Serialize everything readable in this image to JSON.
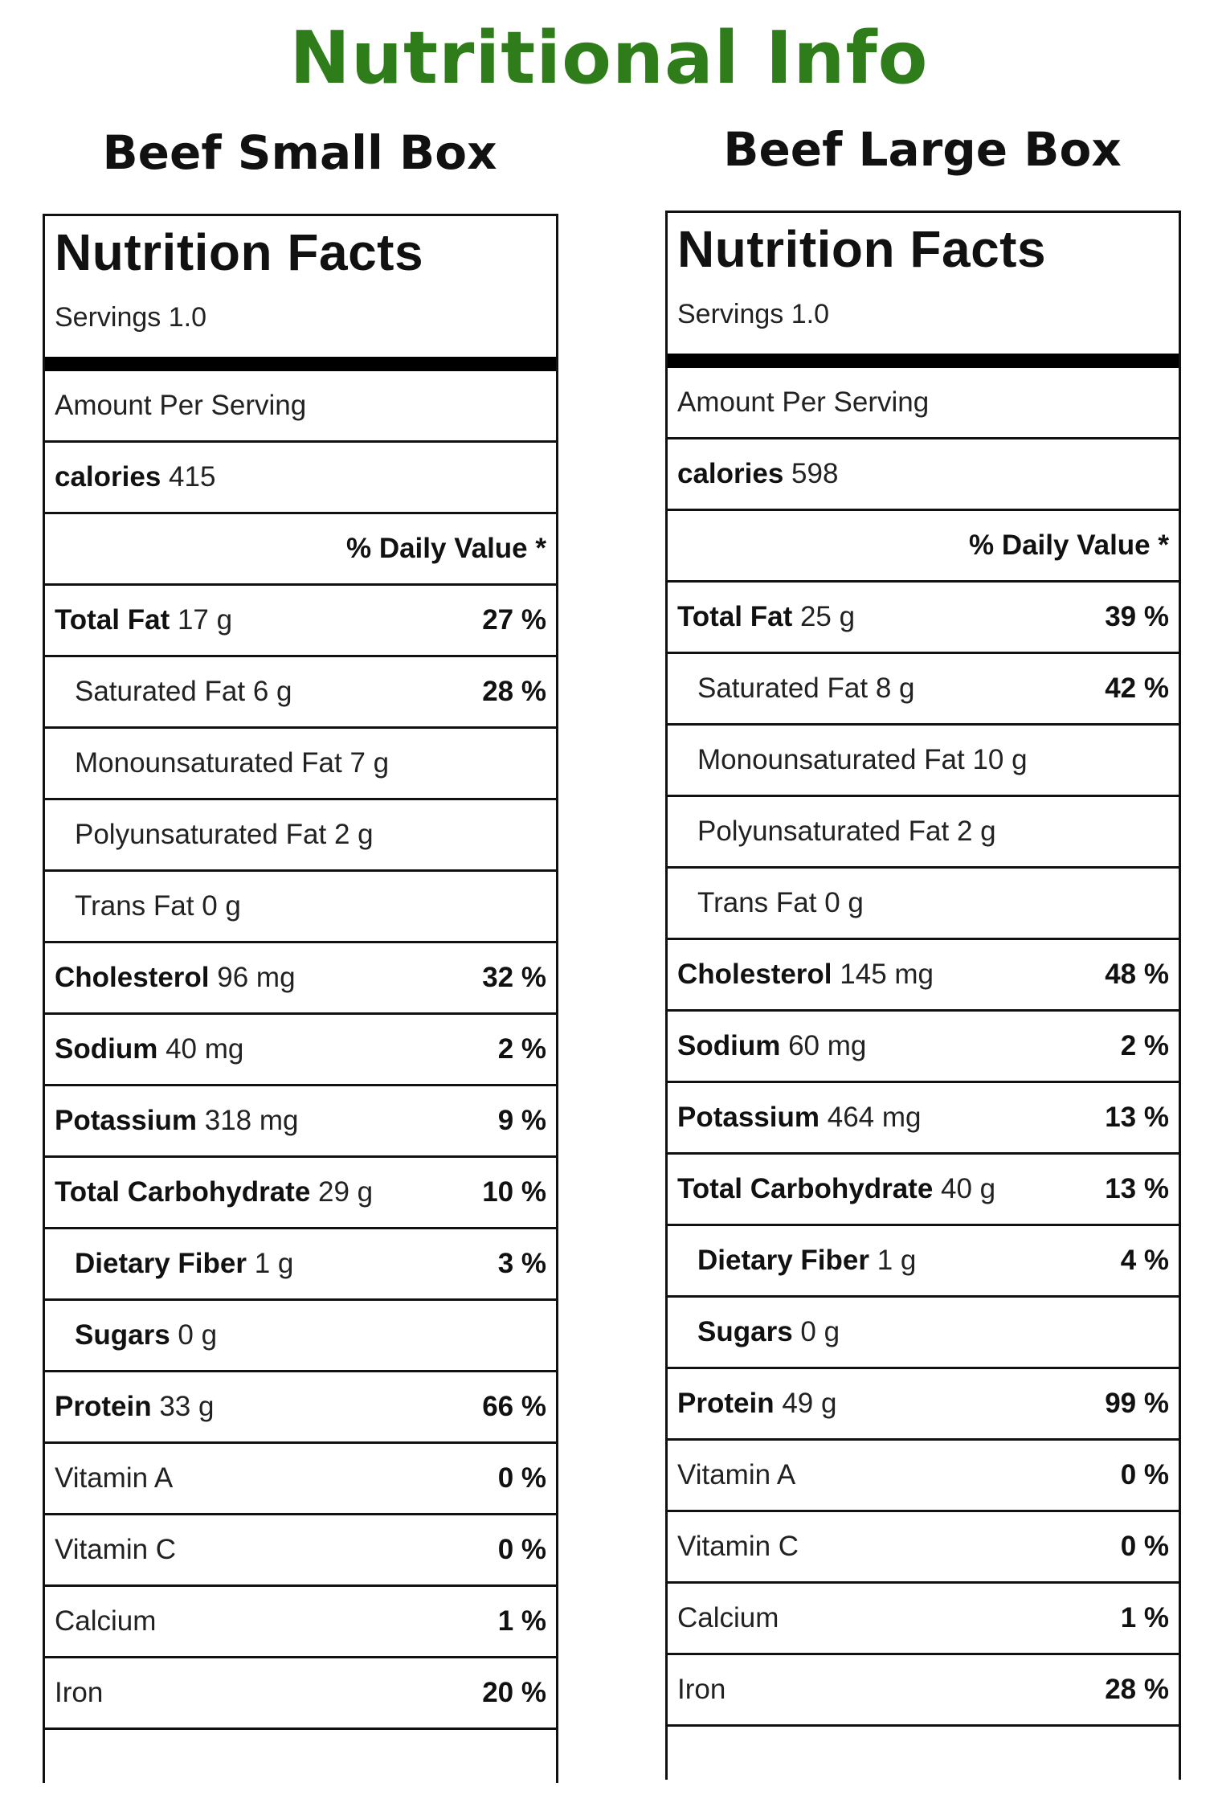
{
  "title": "Nutritional Info",
  "columns": [
    {
      "box_title": "Beef Small Box",
      "facts_title": "Nutrition Facts",
      "servings": "Servings 1.0",
      "amount_per_serving": "Amount Per Serving",
      "calories_label": "calories",
      "calories_value": "415",
      "daily_value": "% Daily Value *",
      "rows": [
        {
          "label": "Total Fat",
          "amount": "17 g",
          "pct": "27 %",
          "sub": false,
          "bold": true
        },
        {
          "label": "Saturated Fat",
          "amount": "6 g",
          "pct": "28 %",
          "sub": true,
          "bold": false
        },
        {
          "label": "Monounsaturated Fat",
          "amount": "7 g",
          "pct": "",
          "sub": true,
          "bold": false
        },
        {
          "label": "Polyunsaturated Fat",
          "amount": "2 g",
          "pct": "",
          "sub": true,
          "bold": false
        },
        {
          "label": "Trans Fat",
          "amount": "0 g",
          "pct": "",
          "sub": true,
          "bold": false
        },
        {
          "label": "Cholesterol",
          "amount": "96 mg",
          "pct": "32 %",
          "sub": false,
          "bold": true
        },
        {
          "label": "Sodium",
          "amount": "40 mg",
          "pct": "2 %",
          "sub": false,
          "bold": true
        },
        {
          "label": "Potassium",
          "amount": "318 mg",
          "pct": "9 %",
          "sub": false,
          "bold": true
        },
        {
          "label": "Total Carbohydrate",
          "amount": "29 g",
          "pct": "10 %",
          "sub": false,
          "bold": true
        },
        {
          "label": "Dietary Fiber",
          "amount": "1 g",
          "pct": "3 %",
          "sub": true,
          "bold": true
        },
        {
          "label": "Sugars",
          "amount": "0 g",
          "pct": "",
          "sub": true,
          "bold": true
        },
        {
          "label": "Protein",
          "amount": "33 g",
          "pct": "66 %",
          "sub": false,
          "bold": true
        },
        {
          "label": "Vitamin A",
          "amount": "",
          "pct": "0 %",
          "sub": false,
          "bold": false
        },
        {
          "label": "Vitamin C",
          "amount": "",
          "pct": "0 %",
          "sub": false,
          "bold": false
        },
        {
          "label": "Calcium",
          "amount": "",
          "pct": "1 %",
          "sub": false,
          "bold": false
        },
        {
          "label": "Iron",
          "amount": "",
          "pct": "20 %",
          "sub": false,
          "bold": false
        }
      ]
    },
    {
      "box_title": "Beef Large Box",
      "facts_title": "Nutrition Facts",
      "servings": "Servings 1.0",
      "amount_per_serving": "Amount Per Serving",
      "calories_label": "calories",
      "calories_value": "598",
      "daily_value": "% Daily Value *",
      "rows": [
        {
          "label": "Total Fat",
          "amount": "25 g",
          "pct": "39 %",
          "sub": false,
          "bold": true
        },
        {
          "label": "Saturated Fat",
          "amount": "8 g",
          "pct": "42 %",
          "sub": true,
          "bold": false
        },
        {
          "label": "Monounsaturated Fat",
          "amount": "10 g",
          "pct": "",
          "sub": true,
          "bold": false
        },
        {
          "label": "Polyunsaturated Fat",
          "amount": "2 g",
          "pct": "",
          "sub": true,
          "bold": false
        },
        {
          "label": "Trans Fat",
          "amount": "0 g",
          "pct": "",
          "sub": true,
          "bold": false
        },
        {
          "label": "Cholesterol",
          "amount": "145 mg",
          "pct": "48 %",
          "sub": false,
          "bold": true
        },
        {
          "label": "Sodium",
          "amount": "60 mg",
          "pct": "2 %",
          "sub": false,
          "bold": true
        },
        {
          "label": "Potassium",
          "amount": "464 mg",
          "pct": "13 %",
          "sub": false,
          "bold": true
        },
        {
          "label": "Total Carbohydrate",
          "amount": "40 g",
          "pct": "13 %",
          "sub": false,
          "bold": true
        },
        {
          "label": "Dietary Fiber",
          "amount": "1 g",
          "pct": "4 %",
          "sub": true,
          "bold": true
        },
        {
          "label": "Sugars",
          "amount": "0 g",
          "pct": "",
          "sub": true,
          "bold": true
        },
        {
          "label": "Protein",
          "amount": "49 g",
          "pct": "99 %",
          "sub": false,
          "bold": true
        },
        {
          "label": "Vitamin A",
          "amount": "",
          "pct": "0 %",
          "sub": false,
          "bold": false
        },
        {
          "label": "Vitamin C",
          "amount": "",
          "pct": "0 %",
          "sub": false,
          "bold": false
        },
        {
          "label": "Calcium",
          "amount": "",
          "pct": "1 %",
          "sub": false,
          "bold": false
        },
        {
          "label": "Iron",
          "amount": "",
          "pct": "28 %",
          "sub": false,
          "bold": false
        }
      ]
    }
  ]
}
